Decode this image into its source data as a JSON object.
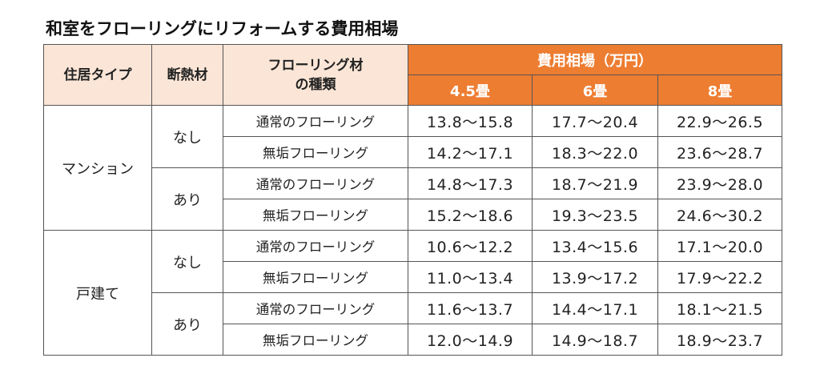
{
  "title": "和室をフローリングにリフォームする費用相場",
  "headers": {
    "residence_type": "住居タイプ",
    "insulation": "断熱材",
    "flooring_type_line1": "フローリング材",
    "flooring_type_line2": "の種類",
    "cost_group": "費用相場（万円）",
    "sizes": [
      "4.5畳",
      "6畳",
      "8畳"
    ]
  },
  "rows": [
    {
      "residence": "マンション",
      "insulation": "なし",
      "type": "通常のフローリング",
      "values": [
        "13.8～15.8",
        "17.7～20.4",
        "22.9～26.5"
      ]
    },
    {
      "residence": "マンション",
      "insulation": "なし",
      "type": "無垢フローリング",
      "values": [
        "14.2～17.1",
        "18.3～22.0",
        "23.6～28.7"
      ]
    },
    {
      "residence": "マンション",
      "insulation": "あり",
      "type": "通常のフローリング",
      "values": [
        "14.8～17.3",
        "18.7～21.9",
        "23.9～28.0"
      ]
    },
    {
      "residence": "マンション",
      "insulation": "あり",
      "type": "無垢フローリング",
      "values": [
        "15.2～18.6",
        "19.3～23.5",
        "24.6～30.2"
      ]
    },
    {
      "residence": "戸建て",
      "insulation": "なし",
      "type": "通常のフローリング",
      "values": [
        "10.6～12.2",
        "13.4～15.6",
        "17.1～20.0"
      ]
    },
    {
      "residence": "戸建て",
      "insulation": "なし",
      "type": "無垢フローリング",
      "values": [
        "11.0～13.4",
        "13.9～17.2",
        "17.9～22.2"
      ]
    },
    {
      "residence": "戸建て",
      "insulation": "あり",
      "type": "通常のフローリング",
      "values": [
        "11.6～13.7",
        "14.4～17.1",
        "18.1～21.5"
      ]
    },
    {
      "residence": "戸建て",
      "insulation": "あり",
      "type": "無垢フローリング",
      "values": [
        "12.0～14.9",
        "14.9～18.7",
        "18.9～23.7"
      ]
    }
  ],
  "colors": {
    "header_accent": "#ed7d31",
    "header_light": "#fbe5d6"
  }
}
